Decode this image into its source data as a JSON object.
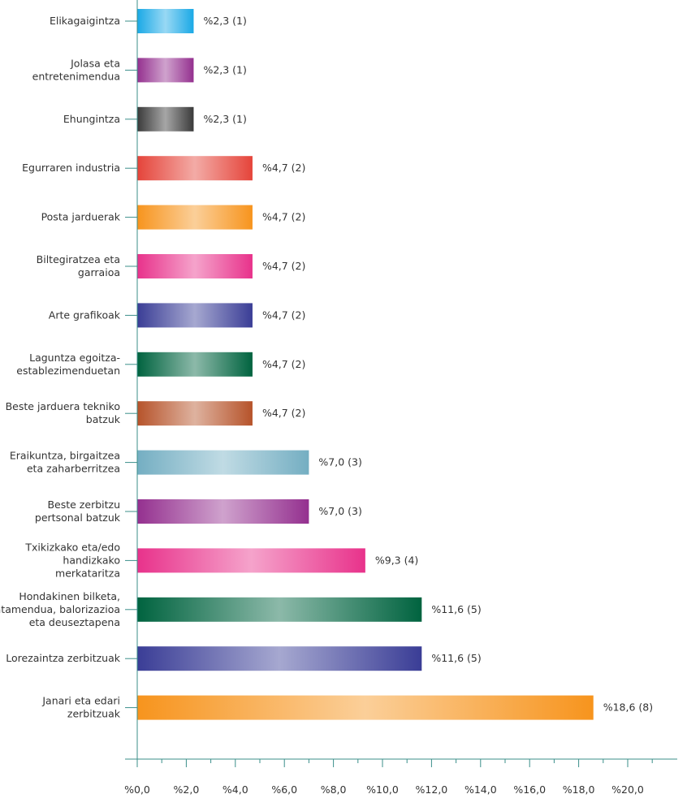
{
  "chart_data": {
    "type": "bar",
    "orientation": "horizontal",
    "categories": [
      "Elikagaigintza",
      "Jolasa eta\nentretenimendua",
      "Ehungintza",
      "Egurraren industria",
      "Posta jarduerak",
      "Biltegiratzea eta\ngarraioa",
      "Arte grafikoak",
      "Laguntza egoitza-\nestablezimenduetan",
      "Beste jarduera tekniko\nbatzuk",
      "Eraikuntza, birgaitzea\neta zaharberritzea",
      "Beste zerbitzu\npertsonal batzuk",
      "Txikizkako eta/edo\nhandizkako\nmerkataritza",
      "Hondakinen bilketa,\ntratamendua, balorizazioa\neta deuseztapena",
      "Lorezaintza zerbitzuak",
      "Janari eta edari\nzerbitzuak"
    ],
    "values": [
      2.3,
      2.3,
      2.3,
      4.7,
      4.7,
      4.7,
      4.7,
      4.7,
      4.7,
      7.0,
      7.0,
      9.3,
      11.6,
      11.6,
      18.6
    ],
    "value_labels": [
      "%2,3 (1)",
      "%2,3 (1)",
      "%2,3 (1)",
      "%4,7 (2)",
      "%4,7 (2)",
      "%4,7 (2)",
      "%4,7 (2)",
      "%4,7 (2)",
      "%4,7 (2)",
      "%7,0 (3)",
      "%7,0 (3)",
      "%9,3 (4)",
      "%11,6 (5)",
      "%11,6 (5)",
      "%18,6 (8)"
    ],
    "colors": [
      "#1aa9e6",
      "#94308f",
      "#3a3a3a",
      "#e5443a",
      "#f7941d",
      "#e8328b",
      "#3a3d96",
      "#00633f",
      "#b6532a",
      "#74aec2",
      "#94308f",
      "#e8328b",
      "#00633f",
      "#3a3d96",
      "#f7941d"
    ],
    "x_ticks": [
      "%0,0",
      "%2,0",
      "%4,0",
      "%6,0",
      "%8,0",
      "%10,0",
      "%12,0",
      "%14,0",
      "%16,0",
      "%18,0",
      "%20,0"
    ],
    "xlim": [
      0,
      21.5
    ],
    "minor_tick_step": 1,
    "title": "",
    "xlabel": "",
    "ylabel": "",
    "grid": false,
    "axis_color": "#3b8f8a"
  }
}
